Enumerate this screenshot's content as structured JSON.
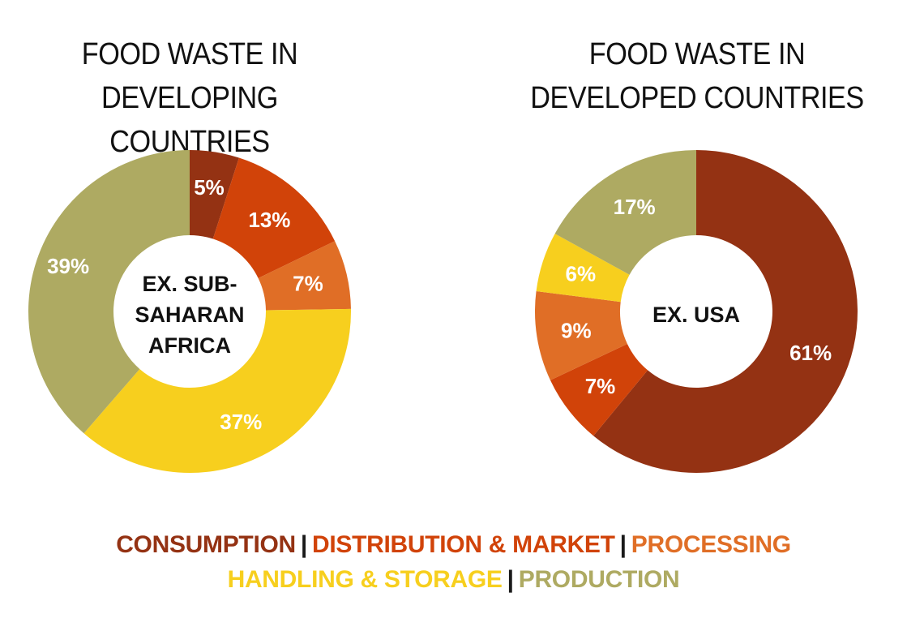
{
  "colors": {
    "consumption": "#943213",
    "distribution": "#d14309",
    "processing": "#e06e26",
    "handling": "#f7cf1e",
    "production": "#aeaa62"
  },
  "legend": {
    "items": [
      {
        "key": "consumption",
        "label": "CONSUMPTION"
      },
      {
        "key": "distribution",
        "label": "DISTRIBUTION & MARKET"
      },
      {
        "key": "processing",
        "label": "PROCESSING"
      },
      {
        "key": "handling",
        "label": "HANDLING & STORAGE"
      },
      {
        "key": "production",
        "label": "PRODUCTION"
      }
    ],
    "separator": "|"
  },
  "chart_data": [
    {
      "type": "pie",
      "donut": true,
      "title_lines": [
        "FOOD WASTE IN",
        "DEVELOPING COUNTRIES"
      ],
      "center_label_lines": [
        "EX. SUB-",
        "SAHARAN",
        "AFRICA"
      ],
      "categories": [
        "Consumption",
        "Distribution & Market",
        "Processing",
        "Handling & Storage",
        "Production"
      ],
      "values": [
        5,
        13,
        7,
        37,
        39
      ],
      "labels": [
        "5%",
        "13%",
        "7%",
        "37%",
        "39%"
      ],
      "color_keys": [
        "consumption",
        "distribution",
        "processing",
        "handling",
        "production"
      ]
    },
    {
      "type": "pie",
      "donut": true,
      "title_lines": [
        "FOOD WASTE IN",
        "DEVELOPED COUNTRIES"
      ],
      "center_label_lines": [
        "EX. USA"
      ],
      "categories": [
        "Consumption",
        "Distribution & Market",
        "Processing",
        "Handling & Storage",
        "Production"
      ],
      "values": [
        61,
        7,
        9,
        6,
        17
      ],
      "labels": [
        "61%",
        "7%",
        "9%",
        "6%",
        "17%"
      ],
      "color_keys": [
        "consumption",
        "distribution",
        "processing",
        "handling",
        "production"
      ]
    }
  ]
}
